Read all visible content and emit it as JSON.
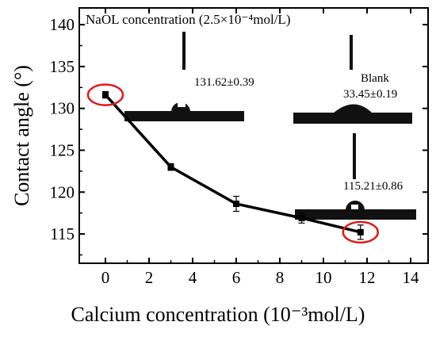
{
  "chart_data": {
    "type": "line",
    "title": "NaOL concentration (2.5×10⁻⁴mol/L)",
    "xlabel": "Calcium concentration (10⁻³mol/L)",
    "ylabel": "Contact angle (°)",
    "xlim": [
      -1.2,
      14.8
    ],
    "ylim": [
      111.5,
      142
    ],
    "xticks": [
      0,
      2,
      4,
      6,
      8,
      10,
      12,
      14
    ],
    "yticks": [
      115,
      120,
      125,
      130,
      135,
      140
    ],
    "grid": false,
    "series": [
      {
        "x": [
          0,
          3,
          6,
          9,
          11.7
        ],
        "y": [
          131.62,
          123.0,
          118.6,
          116.9,
          115.21
        ],
        "yerr": [
          0.39,
          0.4,
          0.9,
          0.6,
          0.86
        ]
      }
    ],
    "highlighted_points": [
      0,
      4
    ],
    "annotations": {
      "first": "131.62±0.39",
      "blank_label": "Blank",
      "blank_value": "33.45±0.19",
      "last": "115.21±0.86"
    },
    "colors": {
      "line": "#000000",
      "highlight": "#e01b1b",
      "droplet": "#111111"
    }
  }
}
